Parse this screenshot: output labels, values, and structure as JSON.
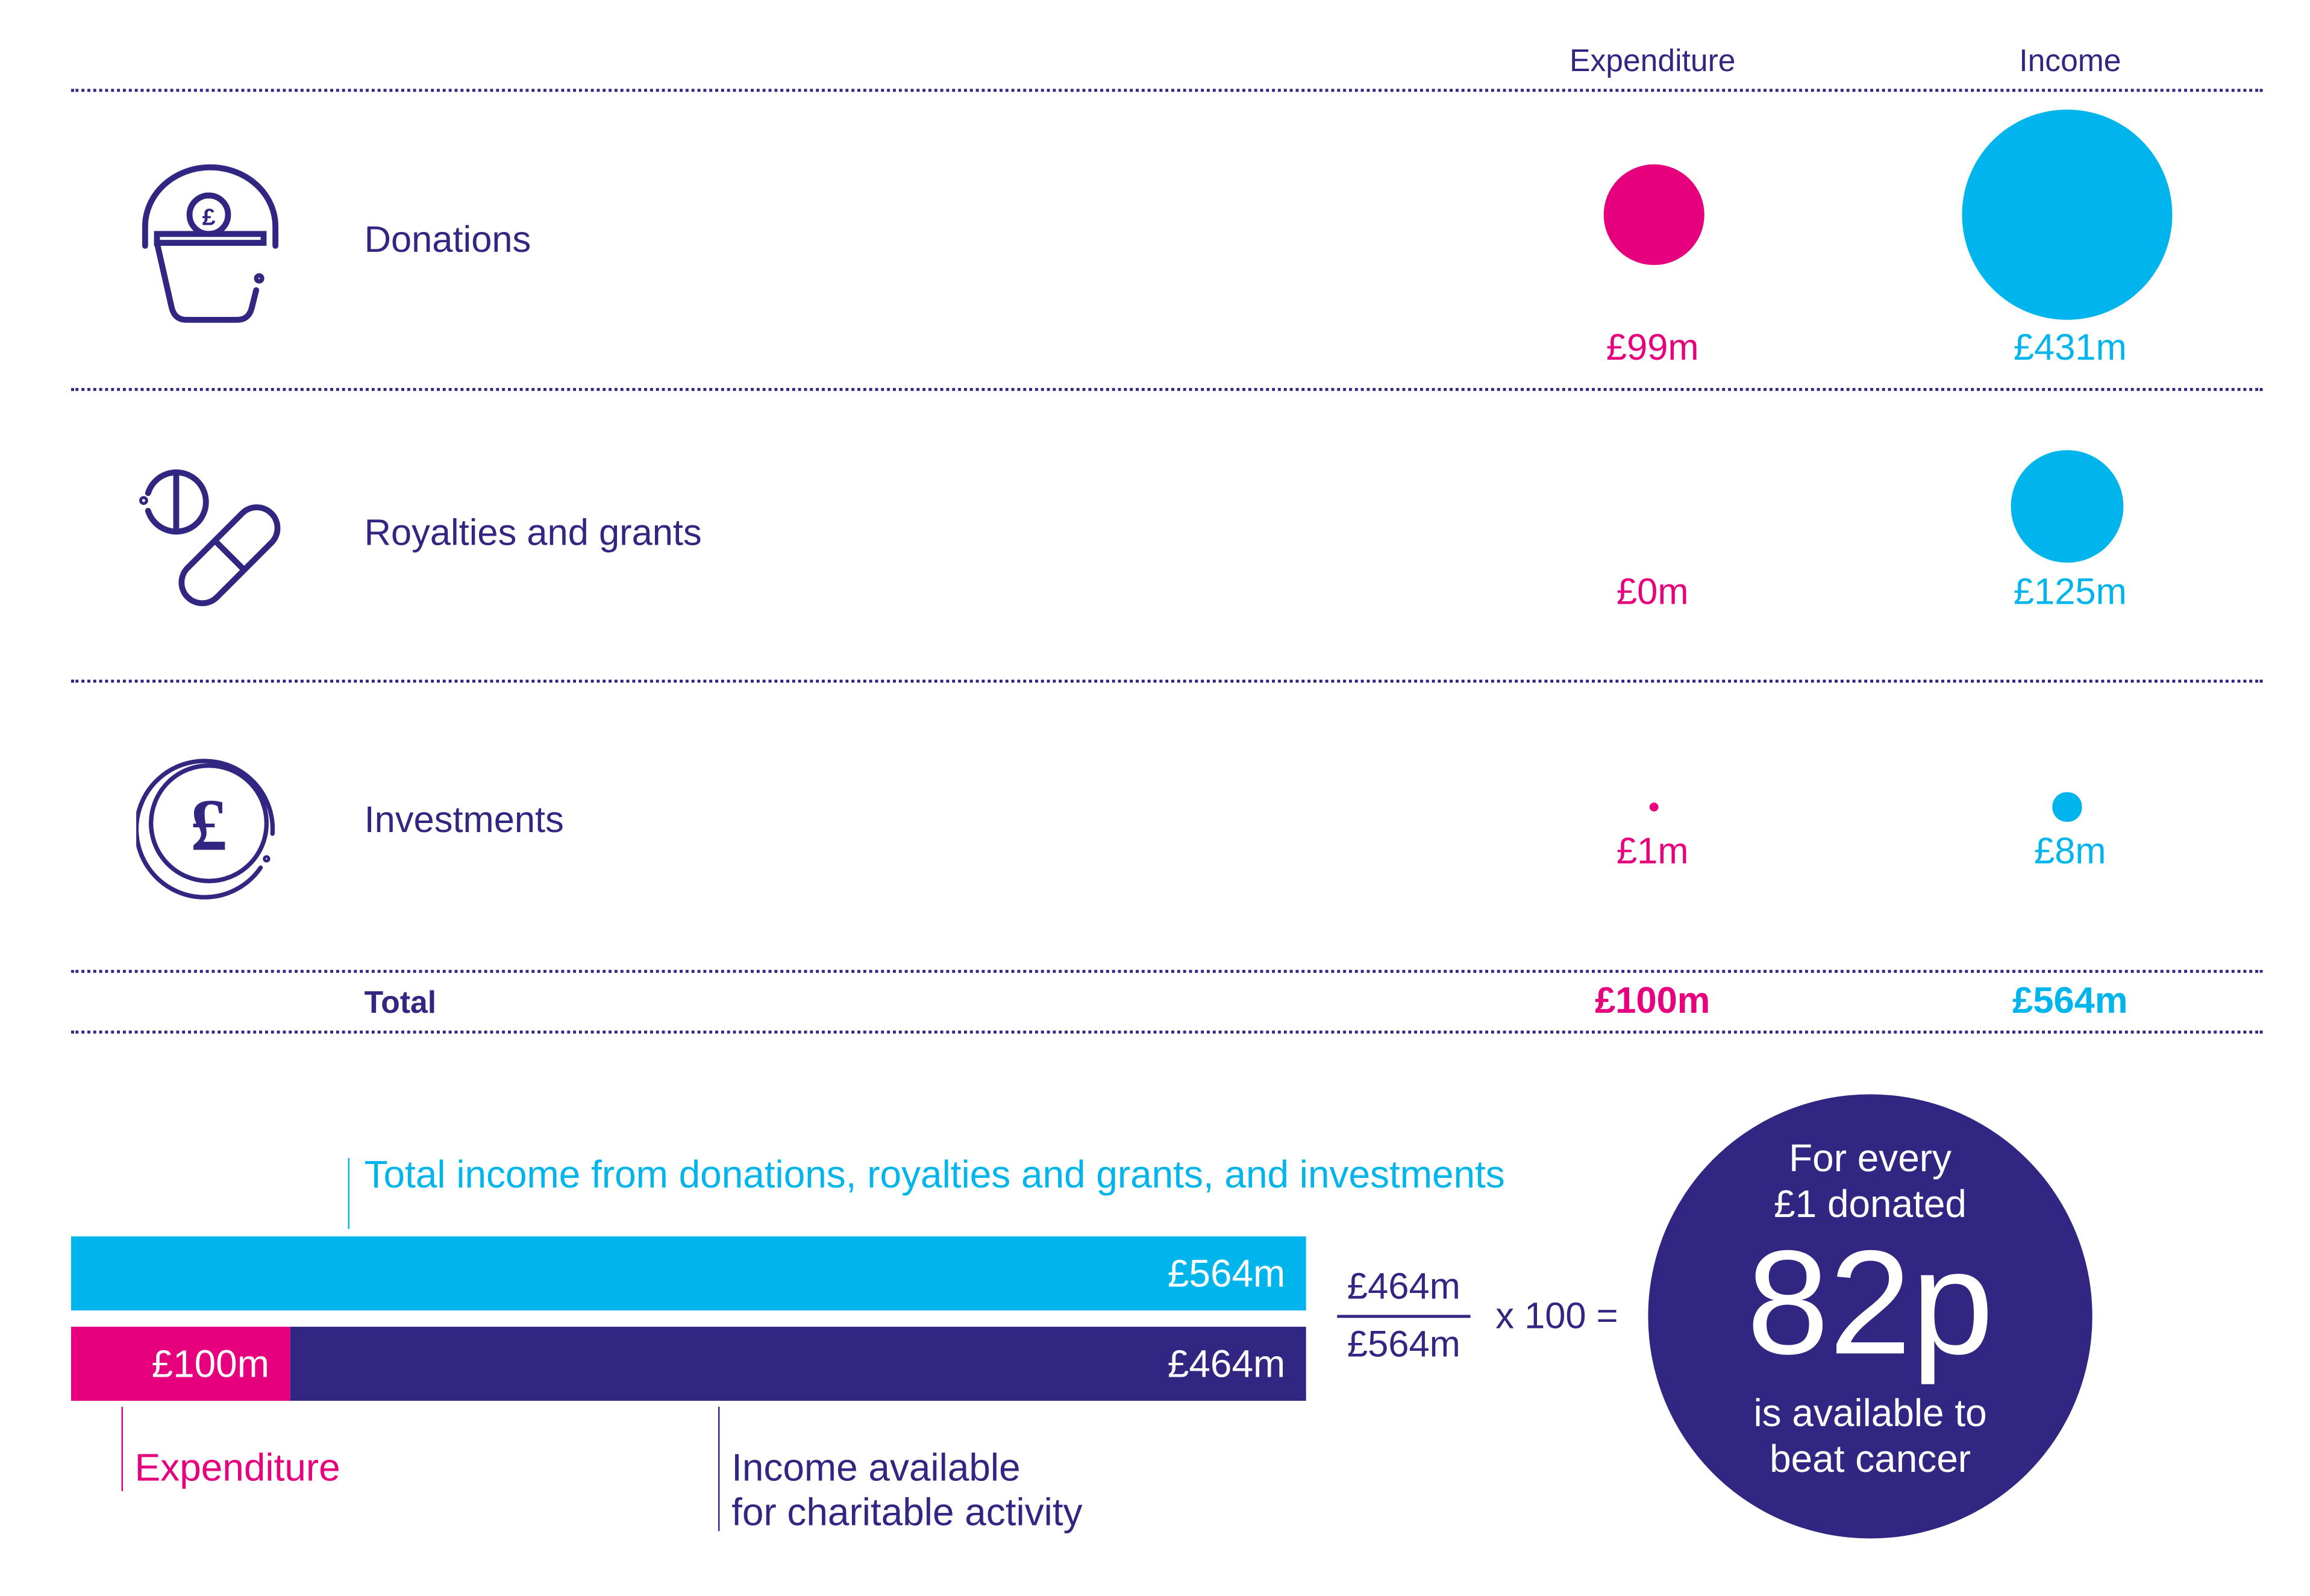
{
  "colors": {
    "navy": "#312782",
    "pink": "#e6007e",
    "cyan": "#00b5ec"
  },
  "headers": {
    "expenditure": "Expenditure",
    "income": "Income"
  },
  "rows": [
    {
      "label": "Donations",
      "icon": "donation-bucket-icon",
      "expenditure_label": "£99m",
      "income_label": "£431m"
    },
    {
      "label": "Royalties and grants",
      "icon": "pills-icon",
      "expenditure_label": "£0m",
      "income_label": "£125m"
    },
    {
      "label": "Investments",
      "icon": "pound-coin-icon",
      "expenditure_label": "£1m",
      "income_label": "£8m"
    }
  ],
  "total": {
    "label": "Total",
    "expenditure": "£100m",
    "income": "£564m"
  },
  "bars": {
    "title": "Total income from donations, royalties and grants, and investments",
    "income_label": "£564m",
    "expenditure_label": "£100m",
    "available_label": "£464m",
    "expenditure_caption": "Expenditure",
    "available_caption_1": "Income available",
    "available_caption_2": "for charitable activity"
  },
  "formula": {
    "numerator": "£464m",
    "denominator": "£564m",
    "multiplier": "x 100 ="
  },
  "result": {
    "line1": "For every",
    "line2": "£1 donated",
    "value": "82p",
    "line3": "is available to",
    "line4": "beat cancer"
  },
  "chart_data": {
    "type": "bubble",
    "units": "£m",
    "categories": [
      "Donations",
      "Royalties and grants",
      "Investments"
    ],
    "series": [
      {
        "name": "Expenditure",
        "values": [
          99,
          0,
          1
        ]
      },
      {
        "name": "Income",
        "values": [
          431,
          125,
          8
        ]
      }
    ],
    "totals": {
      "Expenditure": 100,
      "Income": 564
    },
    "bar": {
      "income": 564,
      "expenditure": 100,
      "available": 464
    },
    "result_pence_per_pound": 82
  }
}
